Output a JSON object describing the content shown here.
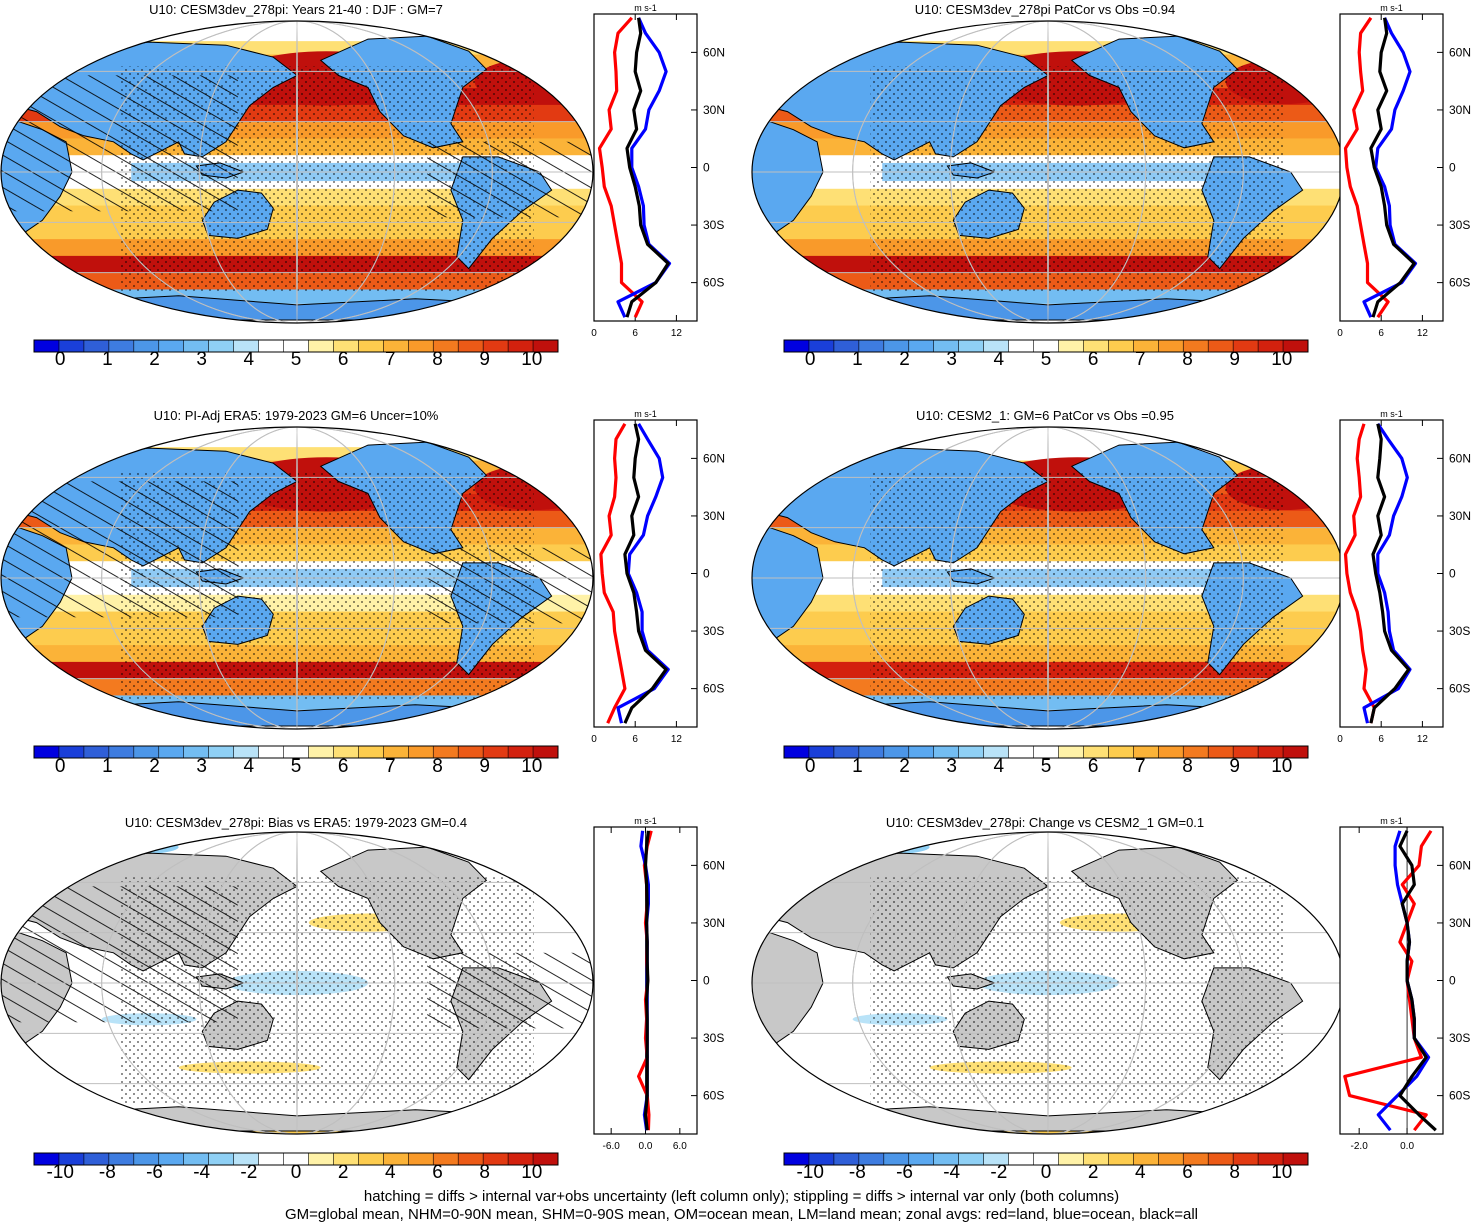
{
  "colors": {
    "levels_seq": [
      "#0000e0",
      "#1a3fd9",
      "#2f5fd8",
      "#3e7ce0",
      "#4c96e8",
      "#5aa8f0",
      "#73bdf2",
      "#8fd0f5",
      "#b9e3f8",
      "#ffffff",
      "#ffffff",
      "#fff2a8",
      "#fee075",
      "#fdcc4e",
      "#fbb338",
      "#f99a2a",
      "#f37a1f",
      "#ec5a17",
      "#e23a12",
      "#d3210e",
      "#c0100c"
    ],
    "land": "#c8c8c8",
    "ocean_white": "#ffffff",
    "grid": "#bfbfbf",
    "red_line": "#ff0000",
    "blue_line": "#0000ff",
    "black_line": "#000000"
  },
  "footnote": {
    "line1": "hatching = diffs > internal var+obs uncertainty (left column only); stippling = diffs > internal var only (both columns)",
    "line2": "GM=global mean, NHM=0-90N mean, SHM=0-90S mean, OM=ocean mean, LM=land mean; zonal avgs: red=land, blue=ocean, black=all"
  },
  "chart_data": [
    {
      "type": "heatmap",
      "title": "U10: CESM3dev_278pi: Years 21-40 : DJF : GM=7",
      "colorbar_labels": [
        "0",
        "1",
        "2",
        "3",
        "4",
        "5",
        "6",
        "7",
        "8",
        "9",
        "10"
      ],
      "mode": "mean",
      "hatching": true,
      "zonal": {
        "type": "line",
        "unit": "m s-1",
        "xticks": [
          "0",
          "6",
          "12"
        ],
        "xlim": [
          0,
          15
        ],
        "yticks": [
          "60N",
          "30N",
          "0",
          "30S",
          "60S"
        ],
        "ylim": [
          -80,
          80
        ],
        "lat": [
          78,
          70,
          60,
          50,
          40,
          30,
          20,
          10,
          0,
          -10,
          -20,
          -30,
          -40,
          -50,
          -60,
          -70,
          -78
        ],
        "all": [
          6.5,
          6.8,
          6.2,
          6.0,
          6.8,
          5.8,
          6.2,
          4.8,
          5.2,
          6.0,
          6.6,
          6.8,
          7.8,
          10.8,
          9.0,
          5.5,
          4.8
        ],
        "land": [
          5.5,
          3.5,
          3.0,
          3.2,
          3.3,
          2.2,
          2.5,
          0.8,
          1.2,
          1.5,
          2.5,
          3.0,
          3.5,
          4.0,
          4.0,
          7.0,
          6.0
        ],
        "ocean": [
          6.5,
          7.5,
          9.5,
          10.5,
          9.5,
          8.0,
          7.5,
          5.5,
          5.5,
          6.5,
          7.2,
          7.3,
          8.0,
          11.0,
          9.0,
          3.5,
          4.5
        ]
      }
    },
    {
      "type": "heatmap",
      "title": "U10: CESM3dev_278pi PatCor vs Obs =0.94",
      "colorbar_labels": [
        "0",
        "1",
        "2",
        "3",
        "4",
        "5",
        "6",
        "7",
        "8",
        "9",
        "10"
      ],
      "mode": "mean",
      "hatching": false,
      "zonal": {
        "type": "line",
        "unit": "m s-1",
        "xticks": [
          "0",
          "6",
          "12"
        ],
        "xlim": [
          0,
          15
        ],
        "yticks": [
          "60N",
          "30N",
          "0",
          "30S",
          "60S"
        ],
        "ylim": [
          -80,
          80
        ],
        "lat": [
          78,
          70,
          60,
          50,
          40,
          30,
          20,
          10,
          0,
          -10,
          -20,
          -30,
          -40,
          -50,
          -60,
          -70,
          -78
        ],
        "all": [
          6.5,
          6.8,
          6.0,
          5.8,
          6.8,
          5.5,
          6.0,
          4.5,
          5.0,
          6.0,
          6.5,
          6.8,
          7.8,
          10.8,
          8.8,
          5.5,
          4.8
        ],
        "land": [
          4.5,
          3.0,
          2.8,
          3.0,
          3.3,
          2.0,
          2.5,
          0.8,
          1.0,
          1.5,
          2.5,
          3.0,
          3.5,
          4.0,
          4.0,
          7.0,
          5.5
        ],
        "ocean": [
          6.5,
          7.5,
          9.2,
          10.2,
          9.2,
          8.0,
          7.5,
          5.5,
          5.2,
          6.5,
          7.2,
          7.3,
          8.0,
          11.0,
          9.0,
          3.5,
          4.5
        ]
      }
    },
    {
      "type": "heatmap",
      "title": "U10: PI-Adj ERA5: 1979-2023 GM=6 Uncer=10%",
      "colorbar_labels": [
        "0",
        "1",
        "2",
        "3",
        "4",
        "5",
        "6",
        "7",
        "8",
        "9",
        "10"
      ],
      "mode": "mean",
      "hatching": true,
      "zonal": {
        "type": "line",
        "unit": "m s-1",
        "xticks": [
          "0",
          "6",
          "12"
        ],
        "xlim": [
          0,
          15
        ],
        "yticks": [
          "60N",
          "30N",
          "0",
          "30S",
          "60S"
        ],
        "ylim": [
          -80,
          80
        ],
        "lat": [
          78,
          70,
          60,
          50,
          40,
          30,
          20,
          10,
          0,
          -10,
          -20,
          -30,
          -40,
          -50,
          -60,
          -70,
          -78
        ],
        "all": [
          6.0,
          6.5,
          6.0,
          5.8,
          6.5,
          5.5,
          5.8,
          4.5,
          4.8,
          5.8,
          6.2,
          6.5,
          7.5,
          10.5,
          8.5,
          5.5,
          4.5
        ],
        "land": [
          4.5,
          3.2,
          3.0,
          3.2,
          3.0,
          2.2,
          2.5,
          1.0,
          1.2,
          1.5,
          2.8,
          3.0,
          3.5,
          4.0,
          4.5,
          3.0,
          2.0
        ],
        "ocean": [
          6.5,
          7.8,
          9.5,
          10.0,
          9.0,
          7.8,
          7.2,
          5.2,
          5.0,
          6.2,
          7.0,
          7.0,
          7.8,
          10.8,
          8.8,
          3.5,
          4.0
        ]
      }
    },
    {
      "type": "heatmap",
      "title": "U10: CESM2_1: GM=6 PatCor vs Obs =0.95",
      "colorbar_labels": [
        "0",
        "1",
        "2",
        "3",
        "4",
        "5",
        "6",
        "7",
        "8",
        "9",
        "10"
      ],
      "mode": "mean",
      "hatching": false,
      "zonal": {
        "type": "line",
        "unit": "m s-1",
        "xticks": [
          "0",
          "6",
          "12"
        ],
        "xlim": [
          0,
          15
        ],
        "yticks": [
          "60N",
          "30N",
          "0",
          "30S",
          "60S"
        ],
        "ylim": [
          -80,
          80
        ],
        "lat": [
          78,
          70,
          60,
          50,
          40,
          30,
          20,
          10,
          0,
          -10,
          -20,
          -30,
          -40,
          -50,
          -60,
          -70,
          -78
        ],
        "all": [
          5.5,
          6.0,
          5.8,
          5.5,
          6.5,
          5.5,
          6.0,
          4.8,
          5.2,
          5.8,
          6.2,
          6.5,
          7.5,
          10.0,
          8.0,
          5.0,
          4.5
        ],
        "land": [
          3.5,
          2.8,
          2.5,
          2.8,
          3.0,
          2.0,
          2.2,
          0.8,
          1.0,
          1.5,
          2.5,
          3.0,
          3.3,
          3.8,
          3.5,
          5.0,
          4.5
        ],
        "ocean": [
          5.5,
          7.0,
          9.0,
          9.8,
          9.0,
          7.8,
          7.2,
          5.5,
          5.5,
          6.5,
          7.0,
          7.2,
          7.8,
          10.2,
          8.5,
          3.5,
          4.0
        ]
      }
    },
    {
      "type": "heatmap",
      "title": "U10: CESM3dev_278pi: Bias vs ERA5: 1979-2023 GM=0.4",
      "colorbar_labels": [
        "-10",
        "-8",
        "-6",
        "-4",
        "-2",
        "0",
        "2",
        "4",
        "6",
        "8",
        "10"
      ],
      "mode": "diff",
      "hatching": true,
      "zonal": {
        "type": "line",
        "unit": "m s-1",
        "xticks": [
          "-6.0",
          "0.0",
          "6.0"
        ],
        "xlim": [
          -9,
          9
        ],
        "yticks": [
          "60N",
          "30N",
          "0",
          "30S",
          "60S"
        ],
        "ylim": [
          -80,
          80
        ],
        "lat": [
          78,
          70,
          60,
          50,
          40,
          30,
          20,
          10,
          0,
          -10,
          -20,
          -30,
          -40,
          -50,
          -60,
          -70,
          -78
        ],
        "all": [
          0.5,
          0.2,
          0.0,
          0.2,
          0.3,
          0.2,
          0.3,
          0.3,
          0.4,
          0.2,
          0.3,
          0.3,
          0.3,
          0.3,
          0.3,
          0.0,
          0.3
        ],
        "land": [
          1.0,
          0.3,
          -0.2,
          0.2,
          0.3,
          0.0,
          0.3,
          0.2,
          0.4,
          0.0,
          0.2,
          0.0,
          0.3,
          -1.2,
          0.3,
          0.6,
          0.5
        ],
        "ocean": [
          -0.5,
          -0.8,
          0.0,
          0.5,
          0.5,
          0.2,
          0.3,
          0.3,
          0.3,
          0.3,
          0.3,
          0.3,
          0.3,
          0.3,
          0.3,
          -0.2,
          0.2
        ]
      }
    },
    {
      "type": "heatmap",
      "title": "U10: CESM3dev_278pi: Change vs CESM2_1 GM=0.1",
      "colorbar_labels": [
        "-10",
        "-8",
        "-6",
        "-4",
        "-2",
        "0",
        "2",
        "4",
        "6",
        "8",
        "10"
      ],
      "mode": "diff",
      "hatching": false,
      "zonal": {
        "type": "line",
        "unit": "m s-1",
        "xticks": [
          "-2.0",
          "0.0"
        ],
        "xlim": [
          -2.8,
          1.5
        ],
        "yticks": [
          "60N",
          "30N",
          "0",
          "30S",
          "60S"
        ],
        "ylim": [
          -80,
          80
        ],
        "lat": [
          78,
          70,
          60,
          50,
          40,
          30,
          20,
          10,
          0,
          -10,
          -20,
          -30,
          -40,
          -50,
          -60,
          -70,
          -78
        ],
        "all": [
          0.0,
          -0.3,
          0.2,
          0.3,
          -0.2,
          0.0,
          0.1,
          0.0,
          0.0,
          0.2,
          0.3,
          0.3,
          0.8,
          0.2,
          -0.3,
          0.5,
          1.2
        ],
        "land": [
          1.0,
          0.6,
          0.5,
          -0.2,
          0.3,
          0.0,
          -0.3,
          0.2,
          0.0,
          0.1,
          0.2,
          0.3,
          0.6,
          -2.6,
          -2.4,
          0.8,
          0.3
        ],
        "ocean": [
          -0.3,
          -0.5,
          -0.5,
          -0.4,
          -0.2,
          0.0,
          0.1,
          0.0,
          0.0,
          0.2,
          0.3,
          0.3,
          0.9,
          0.4,
          -0.4,
          -1.2,
          -0.7
        ]
      }
    }
  ]
}
